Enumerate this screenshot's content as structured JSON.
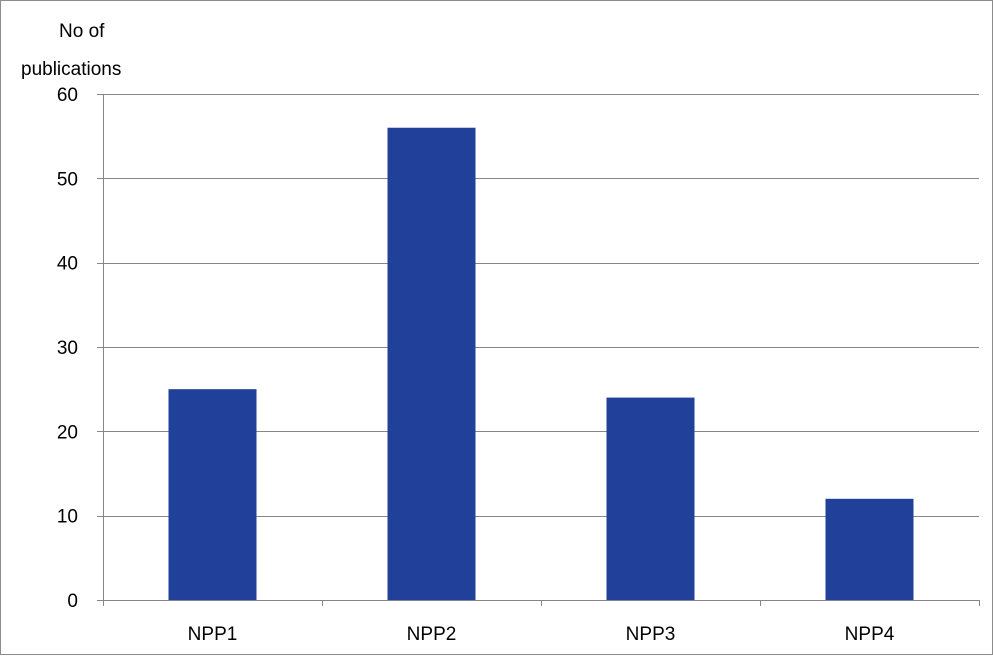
{
  "chart_data": {
    "type": "bar",
    "title": "",
    "xlabel": "",
    "ylabel_lines": [
      "No of",
      "publications"
    ],
    "categories": [
      "NPP1",
      "NPP2",
      "NPP3",
      "NPP4"
    ],
    "values": [
      25,
      56,
      24,
      12
    ],
    "ylim": [
      0,
      60
    ],
    "yticks": [
      "0",
      "10",
      "20",
      "30",
      "40",
      "50",
      "60"
    ],
    "grid": true,
    "legend": "none",
    "bar_color": "#21409a",
    "grid_color": "#868686",
    "axis_color": "#868686"
  }
}
